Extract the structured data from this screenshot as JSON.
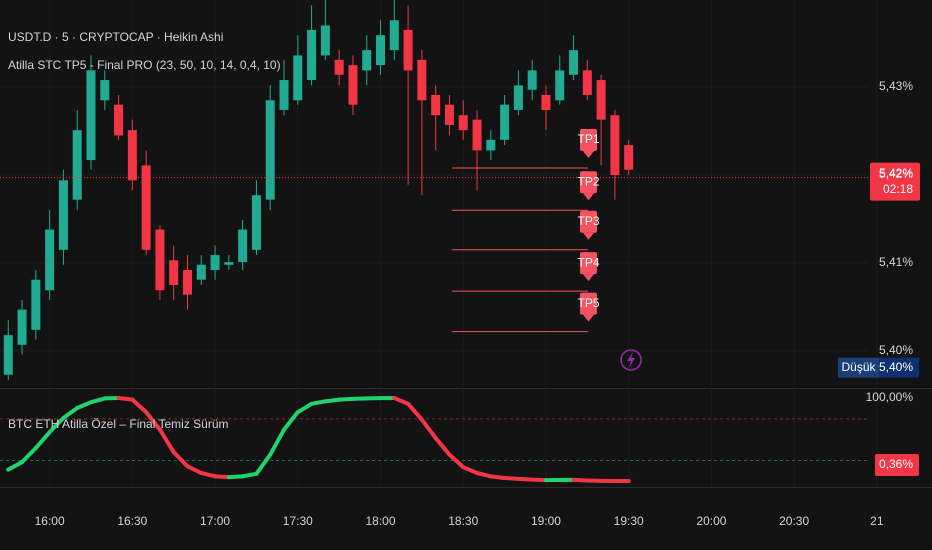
{
  "chart_data": [
    {
      "type": "candlestick",
      "title": "USDT.D · 5 · CRYPTOCAP · Heikin Ashi",
      "subtitle": "Atilla STC TP5 - Final PRO (23, 50, 10, 14, 0,4, 10)",
      "x": [
        "15:45",
        "15:50",
        "15:55",
        "16:00",
        "16:05",
        "16:10",
        "16:15",
        "16:20",
        "16:25",
        "16:30",
        "16:35",
        "16:40",
        "16:45",
        "16:50",
        "16:55",
        "17:00",
        "17:05",
        "17:10",
        "17:15",
        "17:20",
        "17:25",
        "17:30",
        "17:35",
        "17:40",
        "17:45",
        "17:50",
        "17:55",
        "18:00",
        "18:05",
        "18:10",
        "18:15",
        "18:20",
        "18:25",
        "18:30",
        "18:35",
        "18:40",
        "18:45",
        "18:50",
        "18:55",
        "19:00",
        "19:05",
        "19:10",
        "19:15",
        "19:20",
        "19:25",
        "19:30"
      ],
      "open": [
        5.3973,
        5.4007,
        5.4024,
        5.4069,
        5.4115,
        5.4172,
        5.4217,
        5.4285,
        5.428,
        5.4251,
        5.4211,
        5.4138,
        5.4103,
        5.4092,
        5.4081,
        5.4092,
        5.4098,
        5.4101,
        5.4115,
        5.4172,
        5.4274,
        5.4285,
        5.4308,
        5.4336,
        5.4331,
        5.4325,
        5.4319,
        5.4325,
        5.4342,
        5.4365,
        5.4331,
        5.4291,
        5.428,
        5.4268,
        5.4263,
        5.4228,
        5.424,
        5.4274,
        5.4297,
        5.4291,
        5.4285,
        5.4314,
        5.4319,
        5.4308,
        5.4268,
        5.4234
      ],
      "high": [
        5.4035,
        5.4058,
        5.4092,
        5.416,
        5.4206,
        5.4274,
        5.4336,
        5.4319,
        5.4291,
        5.4263,
        5.4228,
        5.4143,
        5.412,
        5.4109,
        5.4109,
        5.412,
        5.4109,
        5.4149,
        5.4194,
        5.4302,
        5.4331,
        5.4359,
        5.4393,
        5.4399,
        5.4342,
        5.4336,
        5.4359,
        5.4376,
        5.4399,
        5.4393,
        5.4342,
        5.4302,
        5.4291,
        5.4285,
        5.4274,
        5.4251,
        5.4291,
        5.4319,
        5.4331,
        5.4302,
        5.4336,
        5.4359,
        5.4331,
        5.4314,
        5.4274,
        5.424
      ],
      "low": [
        5.3967,
        5.3996,
        5.4013,
        5.4058,
        5.4098,
        5.416,
        5.4206,
        5.4274,
        5.424,
        5.4183,
        5.4109,
        5.4058,
        5.4058,
        5.4047,
        5.4075,
        5.4081,
        5.4092,
        5.4092,
        5.4109,
        5.416,
        5.4268,
        5.428,
        5.4302,
        5.4331,
        5.4302,
        5.4268,
        5.4302,
        5.4314,
        5.4331,
        5.4189,
        5.4177,
        5.4228,
        5.4245,
        5.424,
        5.4183,
        5.4217,
        5.4234,
        5.4268,
        5.4285,
        5.4251,
        5.428,
        5.4308,
        5.4285,
        5.4211,
        5.4172,
        5.42
      ],
      "close": [
        5.4018,
        5.4047,
        5.4081,
        5.4138,
        5.4194,
        5.4251,
        5.4319,
        5.4308,
        5.4245,
        5.4194,
        5.4115,
        5.4069,
        5.4075,
        5.4064,
        5.4098,
        5.4109,
        5.4101,
        5.4138,
        5.4177,
        5.4285,
        5.4308,
        5.4336,
        5.4365,
        5.437,
        5.4314,
        5.428,
        5.4342,
        5.4359,
        5.4376,
        5.4319,
        5.4285,
        5.4268,
        5.4257,
        5.4251,
        5.4228,
        5.424,
        5.428,
        5.4302,
        5.4319,
        5.4274,
        5.4319,
        5.4342,
        5.4291,
        5.4263,
        5.42,
        5.4206
      ],
      "up_color": "#22ab94",
      "down_color": "#f23645",
      "xlim": [
        "15:42",
        "21:20"
      ],
      "xticks": [
        "16:00",
        "16:30",
        "17:00",
        "17:30",
        "18:00",
        "18:30",
        "19:00",
        "19:30",
        "20:00",
        "20:30",
        {
          "value": "21:00",
          "label": "21"
        }
      ],
      "ylim": [
        5.3959,
        5.4399
      ],
      "yticks": [
        {
          "value": 5.43,
          "label": "5,43%"
        },
        {
          "value": 5.42,
          "label": "5,42%"
        },
        {
          "value": 5.41,
          "label": "5,41%"
        },
        {
          "value": 5.4,
          "label": "5,40%"
        }
      ],
      "grid": true,
      "targets": [
        {
          "name": "TP1",
          "value": 5.4208
        },
        {
          "name": "TP2",
          "value": 5.416
        },
        {
          "name": "TP3",
          "value": 5.4115
        },
        {
          "name": "TP4",
          "value": 5.4068
        },
        {
          "name": "TP5",
          "value": 5.4022
        }
      ],
      "target_color": "#f7525f",
      "last_price": {
        "value": 5.4197,
        "label": "5,42%"
      },
      "countdown": "02:18",
      "low_marker": {
        "name": "Düşük",
        "value": 5.3981,
        "label": "5,40%"
      }
    },
    {
      "type": "oscillator",
      "title": "BTC ETH Atilla Özel  – Final Temiz Sürüm",
      "x": [
        "15:45",
        "15:50",
        "15:55",
        "16:00",
        "16:05",
        "16:10",
        "16:15",
        "16:20",
        "16:25",
        "16:30",
        "16:35",
        "16:40",
        "16:45",
        "16:50",
        "16:55",
        "17:00",
        "17:05",
        "17:10",
        "17:15",
        "17:20",
        "17:25",
        "17:30",
        "17:35",
        "17:40",
        "17:45",
        "17:50",
        "17:55",
        "18:00",
        "18:05",
        "18:10",
        "18:15",
        "18:20",
        "18:25",
        "18:30",
        "18:35",
        "18:40",
        "18:45",
        "18:50",
        "18:55",
        "19:00",
        "19:05",
        "19:10",
        "19:15",
        "19:20",
        "19:25",
        "19:30"
      ],
      "values": [
        14,
        23,
        40,
        59,
        76,
        88,
        95,
        99.5,
        100,
        98,
        83,
        62,
        35,
        18,
        10,
        6,
        5,
        6,
        9,
        32,
        62,
        83,
        93,
        96,
        98,
        99,
        99.6,
        99.8,
        100,
        93,
        74,
        52,
        32,
        17,
        10,
        6,
        4,
        3,
        2,
        1.5,
        1.6,
        1.7,
        1,
        0.5,
        0.4,
        0.36
      ],
      "up_color": "#1fd46a",
      "down_color": "#f23645",
      "ylim": [
        -5.6,
        110.8
      ],
      "yticks": [
        {
          "value": 100,
          "label": "100,00%"
        }
      ],
      "levels": [
        {
          "value": 75,
          "color": "#8a2b33"
        },
        {
          "value": 25,
          "color": "#1f6b4a"
        }
      ],
      "last_value": {
        "value": 0.36,
        "label": "0,36%"
      }
    }
  ]
}
